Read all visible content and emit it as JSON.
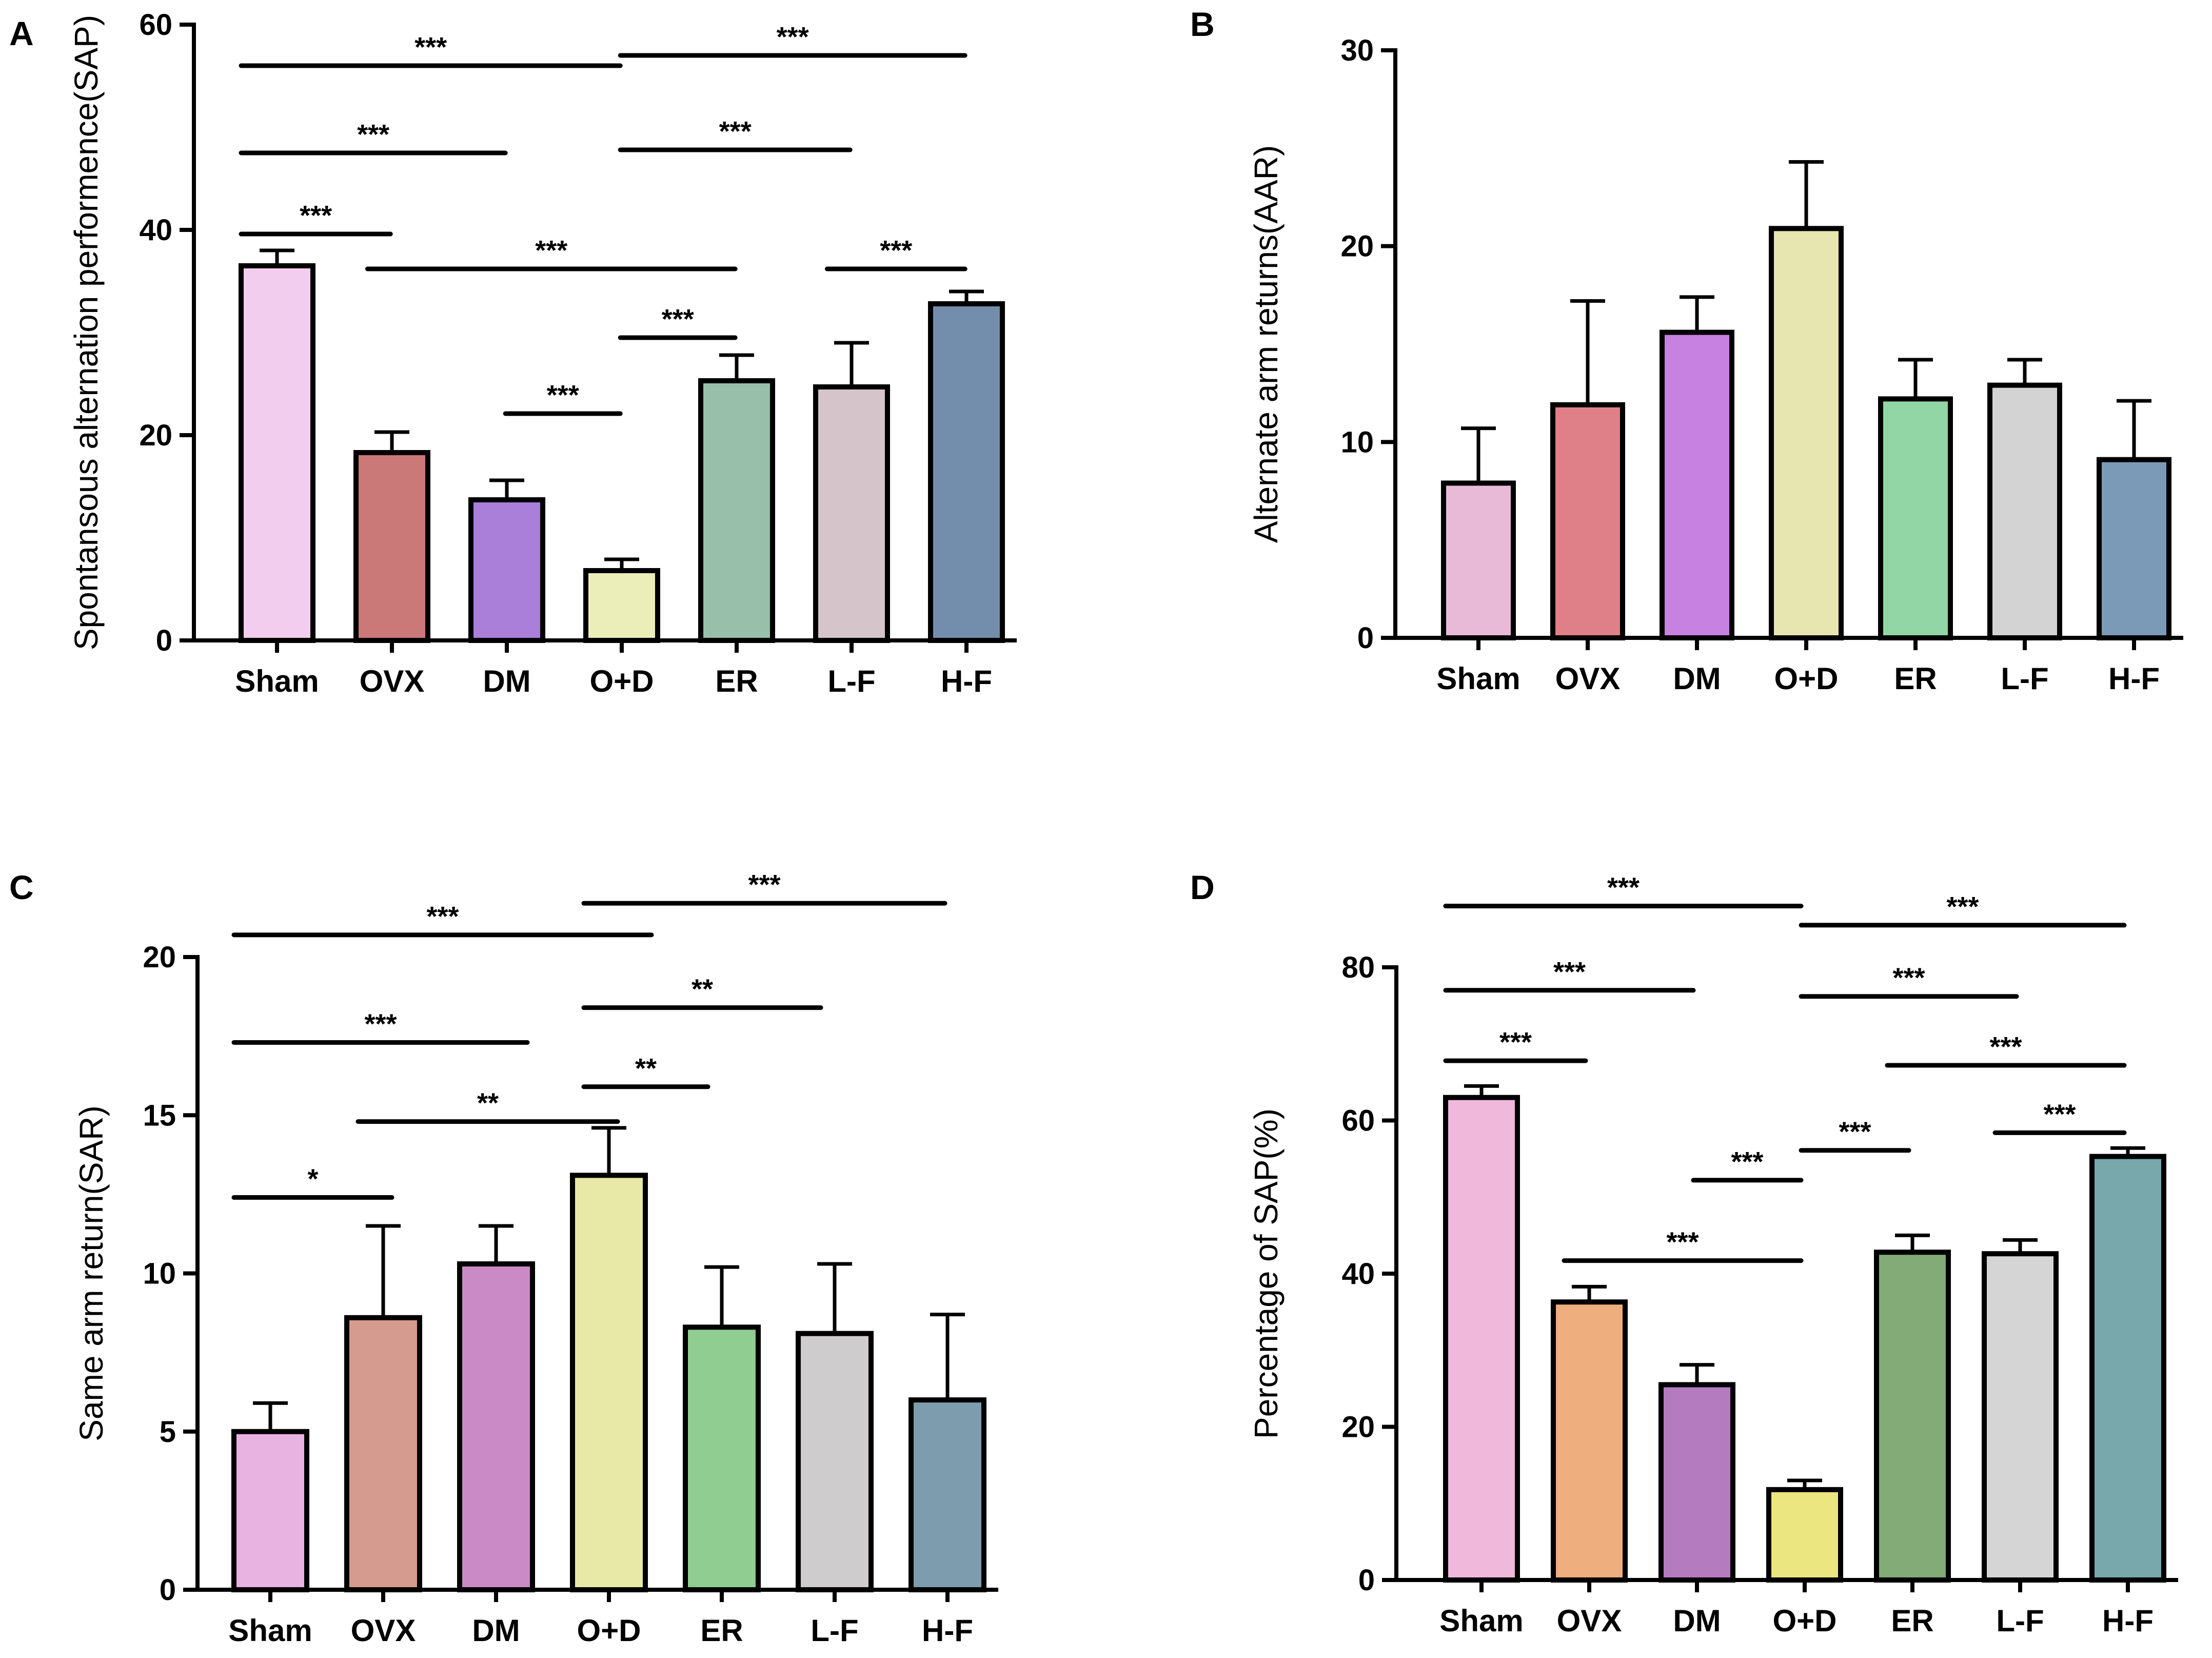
{
  "chart_data": [
    {
      "panel": "A",
      "type": "bar",
      "ylabel": "Spontansous alternation performence(SAP)",
      "ylim": [
        0,
        60
      ],
      "yticks": [
        0,
        20,
        40,
        60
      ],
      "categories": [
        "Sham",
        "OVX",
        "DM",
        "O+D",
        "ER",
        "L-F",
        "H-F"
      ],
      "values": [
        36.5,
        18.3,
        13.7,
        6.8,
        25.3,
        24.7,
        32.8
      ],
      "errors": [
        1.5,
        2.0,
        1.9,
        1.1,
        2.5,
        4.3,
        1.2
      ],
      "colors": [
        "#f3cdee",
        "#cb7878",
        "#a97fda",
        "#eceeb9",
        "#98bfaa",
        "#d5c5ca",
        "#738ead"
      ],
      "significance": [
        {
          "from": 0,
          "to": 3.3,
          "y": 56,
          "label": "***"
        },
        {
          "from": 3.3,
          "to": 6.3,
          "y": 57,
          "label": "***"
        },
        {
          "from": 0,
          "to": 2.3,
          "y": 47.5,
          "label": "***"
        },
        {
          "from": 3.3,
          "to": 5.3,
          "y": 47.8,
          "label": "***"
        },
        {
          "from": 0,
          "to": 1.3,
          "y": 39.6,
          "label": "***"
        },
        {
          "from": 1.1,
          "to": 4.3,
          "y": 36.2,
          "label": "***"
        },
        {
          "from": 5.1,
          "to": 6.3,
          "y": 36.2,
          "label": "***"
        },
        {
          "from": 3.3,
          "to": 4.3,
          "y": 29.5,
          "label": "***"
        },
        {
          "from": 2.3,
          "to": 3.3,
          "y": 22.1,
          "label": "***"
        }
      ]
    },
    {
      "panel": "B",
      "type": "bar",
      "ylabel": "Alternate arm returns(AAR)",
      "ylim": [
        0,
        30
      ],
      "yticks": [
        0,
        10,
        20,
        30
      ],
      "categories": [
        "Sham",
        "OVX",
        "DM",
        "O+D",
        "ER",
        "L-F",
        "H-F"
      ],
      "values": [
        7.9,
        11.9,
        15.6,
        20.9,
        12.2,
        12.9,
        9.1
      ],
      "errors": [
        2.8,
        5.3,
        1.8,
        3.4,
        2.0,
        1.3,
        3.0
      ],
      "colors": [
        "#e9bad7",
        "#df7f87",
        "#c781e0",
        "#e7e5b0",
        "#92d6a5",
        "#d3d3d3",
        "#7b9ab7"
      ],
      "significance": []
    },
    {
      "panel": "C",
      "type": "bar",
      "ylabel": "Same arm return(SAR)",
      "ylim": [
        0,
        20
      ],
      "yticks": [
        0,
        5,
        10,
        15,
        20
      ],
      "categories": [
        "Sham",
        "OVX",
        "DM",
        "O+D",
        "ER",
        "L-F",
        "H-F"
      ],
      "values": [
        5.0,
        8.6,
        10.3,
        13.1,
        8.3,
        8.1,
        6.0
      ],
      "errors": [
        0.9,
        2.9,
        1.2,
        1.5,
        1.9,
        2.2,
        2.7
      ],
      "colors": [
        "#e8b2e1",
        "#d49b8e",
        "#c98ac6",
        "#e8e9a6",
        "#90cd90",
        "#cecccd",
        "#7d9cae"
      ],
      "significance": [
        {
          "from": 0,
          "to": 3.7,
          "y": 20.7,
          "label": "***"
        },
        {
          "from": 3.1,
          "to": 6.3,
          "y": 21.7,
          "label": "***"
        },
        {
          "from": 0,
          "to": 2.6,
          "y": 17.3,
          "label": "***"
        },
        {
          "from": 3.1,
          "to": 5.2,
          "y": 18.4,
          "label": "**"
        },
        {
          "from": 3.1,
          "to": 4.2,
          "y": 15.9,
          "label": "**"
        },
        {
          "from": 1.1,
          "to": 3.4,
          "y": 14.8,
          "label": "**"
        },
        {
          "from": 0,
          "to": 1.4,
          "y": 12.4,
          "label": "*"
        }
      ]
    },
    {
      "panel": "D",
      "type": "bar",
      "ylabel": "Percentage of SAP(%)",
      "ylim": [
        0,
        80
      ],
      "yticks": [
        0,
        20,
        40,
        60,
        80
      ],
      "categories": [
        "Sham",
        "OVX",
        "DM",
        "O+D",
        "ER",
        "L-F",
        "H-F"
      ],
      "values": [
        63.0,
        36.3,
        25.5,
        11.8,
        42.8,
        42.6,
        55.3
      ],
      "errors": [
        1.5,
        2.0,
        2.6,
        1.2,
        2.2,
        1.8,
        1.1
      ],
      "colors": [
        "#f0b8db",
        "#eeae7d",
        "#b57bbf",
        "#ebe67f",
        "#82ab78",
        "#d5d5d5",
        "#79a8ac"
      ],
      "significance": [
        {
          "from": 0,
          "to": 3.3,
          "y": 88,
          "label": "***"
        },
        {
          "from": 3.3,
          "to": 6.3,
          "y": 85.5,
          "label": "***"
        },
        {
          "from": 0,
          "to": 2.3,
          "y": 77,
          "label": "***"
        },
        {
          "from": 3.3,
          "to": 5.3,
          "y": 76.2,
          "label": "***"
        },
        {
          "from": 0,
          "to": 1.3,
          "y": 67.8,
          "label": "***"
        },
        {
          "from": 4.1,
          "to": 6.3,
          "y": 67.2,
          "label": "***"
        },
        {
          "from": 3.3,
          "to": 4.3,
          "y": 56.1,
          "label": "***"
        },
        {
          "from": 5.1,
          "to": 6.3,
          "y": 58.4,
          "label": "***"
        },
        {
          "from": 2.3,
          "to": 3.3,
          "y": 52.2,
          "label": "***"
        },
        {
          "from": 1.1,
          "to": 3.3,
          "y": 41.7,
          "label": "***"
        }
      ]
    }
  ]
}
